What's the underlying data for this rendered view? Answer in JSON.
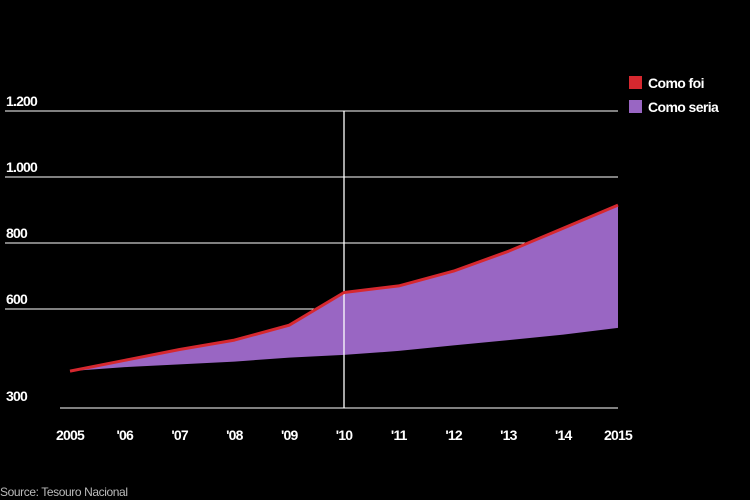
{
  "chart_data": {
    "type": "area",
    "x": [
      "2005",
      "'06",
      "'07",
      "'08",
      "'09",
      "'10",
      "'11",
      "'12",
      "'13",
      "'14",
      "2015"
    ],
    "y_ticks": [
      300,
      600,
      800,
      1000,
      1200
    ],
    "y_tick_labels": [
      "300",
      "600",
      "800",
      "1.000",
      "1.200"
    ],
    "ylim": [
      300,
      1200
    ],
    "highlight_x": "'10",
    "grid": true,
    "legend_position": "top-right",
    "series": [
      {
        "name": "Como foi",
        "color": "#d6282f",
        "style": "line",
        "values": [
          370,
          410,
          450,
          485,
          540,
          650,
          670,
          715,
          775,
          845,
          915
        ]
      },
      {
        "name": "Como seria",
        "color": "#9966c3",
        "style": "area",
        "values": [
          370,
          385,
          395,
          405,
          420,
          430,
          445,
          465,
          485,
          505,
          530
        ]
      }
    ],
    "source": "Source: Tesouro Nacional"
  }
}
